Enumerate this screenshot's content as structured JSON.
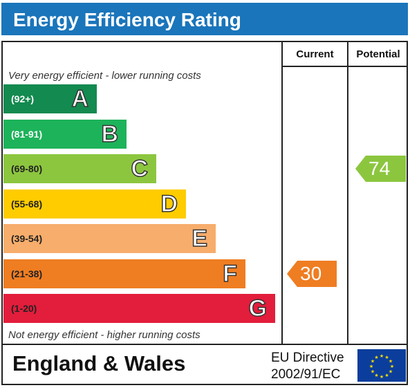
{
  "header": {
    "title": "Energy Efficiency Rating"
  },
  "columns": {
    "current": "Current",
    "potential": "Potential"
  },
  "captions": {
    "top": "Very energy efficient - lower running costs",
    "bottom": "Not energy efficient - higher running costs"
  },
  "chart_data": {
    "type": "bar",
    "bands": [
      {
        "letter": "A",
        "range": "(92+)",
        "color": "#138a4f",
        "text_color": "#ffffff"
      },
      {
        "letter": "B",
        "range": "(81-91)",
        "color": "#1db35a",
        "text_color": "#ffffff"
      },
      {
        "letter": "C",
        "range": "(69-80)",
        "color": "#8cc63f",
        "text_color": "#222222"
      },
      {
        "letter": "D",
        "range": "(55-68)",
        "color": "#ffcc00",
        "text_color": "#222222"
      },
      {
        "letter": "E",
        "range": "(39-54)",
        "color": "#f7ad6b",
        "text_color": "#222222"
      },
      {
        "letter": "F",
        "range": "(21-38)",
        "color": "#ef7d22",
        "text_color": "#222222"
      },
      {
        "letter": "G",
        "range": "(1-20)",
        "color": "#e31d3c",
        "text_color": "#222222"
      }
    ],
    "current": {
      "value": "30",
      "band": "F",
      "color": "#ef7d22"
    },
    "potential": {
      "value": "74",
      "band": "C",
      "color": "#8cc63f"
    }
  },
  "footer": {
    "region": "England & Wales",
    "directive_line1": "EU Directive",
    "directive_line2": "2002/91/EC"
  }
}
